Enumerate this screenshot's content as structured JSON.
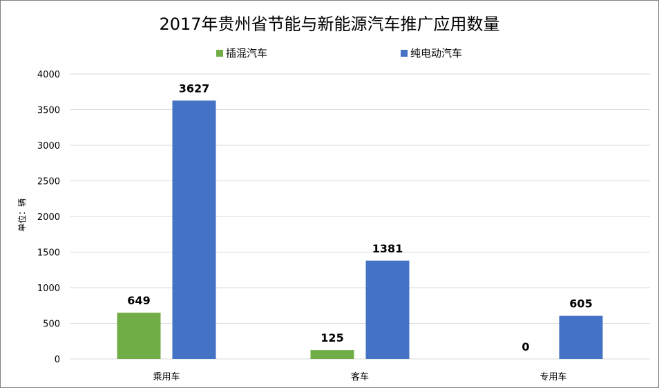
{
  "chart_data": {
    "type": "bar",
    "title": "2017年贵州省节能与新能源汽车推广应用数量",
    "ylabel": "单位：辆",
    "xlabel": "",
    "categories": [
      "乘用车",
      "客车",
      "专用车"
    ],
    "series": [
      {
        "name": "插混汽车",
        "values": [
          649,
          125,
          0
        ],
        "color": "#70ad47"
      },
      {
        "name": "纯电动汽车",
        "values": [
          3627,
          1381,
          605
        ],
        "color": "#4472c4"
      }
    ],
    "ylim": [
      0,
      4000
    ],
    "yticks": [
      0,
      500,
      1000,
      1500,
      2000,
      2500,
      3000,
      3500,
      4000
    ],
    "grid": true,
    "legend": "top",
    "data_labels": true
  }
}
